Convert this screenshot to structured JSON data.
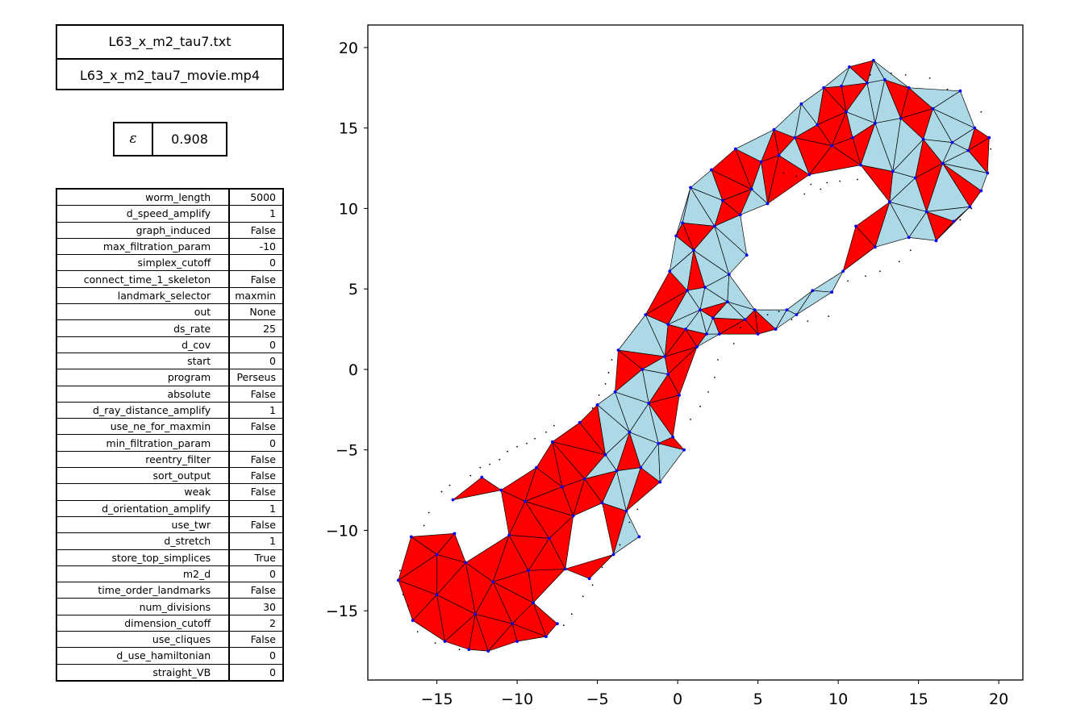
{
  "files": {
    "data_file": "L63_x_m2_tau7.txt",
    "movie_file": "L63_x_m2_tau7_movie.mp4"
  },
  "epsilon": {
    "symbol": "ε",
    "value": "0.908"
  },
  "params": [
    {
      "key": "worm_length",
      "value": "5000"
    },
    {
      "key": "d_speed_amplify",
      "value": "1"
    },
    {
      "key": "graph_induced",
      "value": "False"
    },
    {
      "key": "max_filtration_param",
      "value": "-10"
    },
    {
      "key": "simplex_cutoff",
      "value": "0"
    },
    {
      "key": "connect_time_1_skeleton",
      "value": "False"
    },
    {
      "key": "landmark_selector",
      "value": "maxmin"
    },
    {
      "key": "out",
      "value": "None"
    },
    {
      "key": "ds_rate",
      "value": "25"
    },
    {
      "key": "d_cov",
      "value": "0"
    },
    {
      "key": "start",
      "value": "0"
    },
    {
      "key": "program",
      "value": "Perseus"
    },
    {
      "key": "absolute",
      "value": "False"
    },
    {
      "key": "d_ray_distance_amplify",
      "value": "1"
    },
    {
      "key": "use_ne_for_maxmin",
      "value": "False"
    },
    {
      "key": "min_filtration_param",
      "value": "0"
    },
    {
      "key": "reentry_filter",
      "value": "False"
    },
    {
      "key": "sort_output",
      "value": "False"
    },
    {
      "key": "weak",
      "value": "False"
    },
    {
      "key": "d_orientation_amplify",
      "value": "1"
    },
    {
      "key": "use_twr",
      "value": "False"
    },
    {
      "key": "d_stretch",
      "value": "1"
    },
    {
      "key": "store_top_simplices",
      "value": "True"
    },
    {
      "key": "m2_d",
      "value": "0"
    },
    {
      "key": "time_order_landmarks",
      "value": "False"
    },
    {
      "key": "num_divisions",
      "value": "30"
    },
    {
      "key": "dimension_cutoff",
      "value": "2"
    },
    {
      "key": "use_cliques",
      "value": "False"
    },
    {
      "key": "d_use_hamiltonian",
      "value": "0"
    },
    {
      "key": "straight_VB",
      "value": "0"
    }
  ],
  "colors": {
    "triangle_fill": "#add8e6",
    "tetra_fill": "#ff0000",
    "landmark": "#0000ff",
    "witness": "#000000"
  },
  "chart_data": {
    "type": "scatter",
    "xlim": [
      -19.3,
      21.5
    ],
    "ylim": [
      -19.3,
      21.4
    ],
    "xticks": [
      -15,
      -10,
      -5,
      0,
      5,
      10,
      15,
      20
    ],
    "yticks": [
      -15,
      -10,
      -5,
      0,
      5,
      10,
      15,
      20
    ],
    "xtick_labels": [
      "−15",
      "−10",
      "−5",
      "0",
      "5",
      "10",
      "15",
      "20"
    ],
    "ytick_labels": [
      "−15",
      "−10",
      "−5",
      "0",
      "5",
      "10",
      "15",
      "20"
    ],
    "grid": false,
    "landmarks": [
      [
        -17.4,
        -13.1
      ],
      [
        -16.6,
        -10.4
      ],
      [
        -16.5,
        -15.6
      ],
      [
        -15.0,
        -14.0
      ],
      [
        -15.0,
        -11.5
      ],
      [
        -14.5,
        -16.9
      ],
      [
        -14.0,
        -8.1
      ],
      [
        -13.9,
        -10.2
      ],
      [
        -13.2,
        -12.0
      ],
      [
        -13.0,
        -17.4
      ],
      [
        -12.6,
        -15.2
      ],
      [
        -12.2,
        -6.7
      ],
      [
        -11.8,
        -17.5
      ],
      [
        -11.5,
        -13.2
      ],
      [
        -11.0,
        -7.5
      ],
      [
        -10.5,
        -10.3
      ],
      [
        -10.3,
        -15.8
      ],
      [
        -10.0,
        -16.9
      ],
      [
        -9.5,
        -8.2
      ],
      [
        -9.3,
        -12.5
      ],
      [
        -9.0,
        -14.5
      ],
      [
        -8.8,
        -6.1
      ],
      [
        -8.2,
        -16.6
      ],
      [
        -8.0,
        -10.5
      ],
      [
        -7.8,
        -4.5
      ],
      [
        -7.5,
        -15.8
      ],
      [
        -7.2,
        -7.3
      ],
      [
        -7.0,
        -12.4
      ],
      [
        -6.5,
        -9.1
      ],
      [
        -6.1,
        -3.3
      ],
      [
        -5.8,
        -6.8
      ],
      [
        -5.5,
        -13.0
      ],
      [
        -5.0,
        -2.2
      ],
      [
        -4.7,
        -8.3
      ],
      [
        -4.5,
        -5.3
      ],
      [
        -4.0,
        -11.5
      ],
      [
        -3.9,
        -1.4
      ],
      [
        -3.8,
        -6.3
      ],
      [
        -3.7,
        1.2
      ],
      [
        -3.2,
        -8.8
      ],
      [
        -3.0,
        -3.9
      ],
      [
        -2.4,
        -10.4
      ],
      [
        -2.3,
        -6.1
      ],
      [
        -2.2,
        0.0
      ],
      [
        -2.0,
        3.4
      ],
      [
        -1.8,
        -2.1
      ],
      [
        -1.2,
        -4.6
      ],
      [
        -1.1,
        -7.0
      ],
      [
        -0.8,
        0.8
      ],
      [
        -0.6,
        -0.3
      ],
      [
        -0.6,
        2.8
      ],
      [
        -0.5,
        6.1
      ],
      [
        -0.3,
        -4.2
      ],
      [
        -0.1,
        8.3
      ],
      [
        0.1,
        -1.6
      ],
      [
        0.3,
        9.1
      ],
      [
        0.4,
        -5.0
      ],
      [
        0.5,
        2.5
      ],
      [
        0.6,
        4.9
      ],
      [
        0.8,
        11.3
      ],
      [
        1.0,
        7.4
      ],
      [
        1.2,
        1.4
      ],
      [
        1.4,
        3.7
      ],
      [
        1.7,
        5.1
      ],
      [
        2.1,
        12.4
      ],
      [
        2.3,
        8.9
      ],
      [
        2.6,
        2.2
      ],
      [
        2.8,
        10.5
      ],
      [
        3.2,
        5.9
      ],
      [
        3.6,
        13.7
      ],
      [
        3.9,
        9.6
      ],
      [
        4.3,
        7.1
      ],
      [
        4.6,
        11.2
      ],
      [
        4.8,
        3.7
      ],
      [
        5.2,
        12.9
      ],
      [
        5.6,
        10.3
      ],
      [
        6.0,
        14.9
      ],
      [
        6.3,
        13.3
      ],
      [
        6.8,
        3.7
      ],
      [
        7.3,
        14.4
      ],
      [
        7.7,
        16.5
      ],
      [
        8.2,
        12.1
      ],
      [
        8.7,
        15.2
      ],
      [
        9.1,
        17.5
      ],
      [
        9.6,
        13.9
      ],
      [
        10.2,
        17.6
      ],
      [
        10.5,
        16.0
      ],
      [
        10.9,
        14.4
      ],
      [
        11.4,
        12.7
      ],
      [
        11.8,
        17.8
      ],
      [
        12.3,
        15.3
      ],
      [
        12.9,
        18.0
      ],
      [
        13.4,
        12.3
      ],
      [
        13.9,
        15.6
      ],
      [
        14.4,
        17.5
      ],
      [
        14.8,
        11.9
      ],
      [
        15.3,
        14.3
      ],
      [
        15.9,
        16.2
      ],
      [
        16.5,
        12.8
      ],
      [
        17.1,
        14.1
      ],
      [
        17.6,
        17.3
      ],
      [
        18.1,
        13.6
      ],
      [
        18.5,
        15.0
      ],
      [
        18.9,
        11.1
      ],
      [
        19.4,
        14.4
      ],
      [
        19.3,
        12.2
      ],
      [
        18.2,
        10.1
      ],
      [
        17.2,
        9.2
      ],
      [
        16.1,
        8.0
      ],
      [
        15.5,
        9.8
      ],
      [
        14.4,
        8.2
      ],
      [
        13.2,
        10.4
      ],
      [
        12.3,
        7.6
      ],
      [
        11.1,
        8.9
      ],
      [
        10.3,
        6.1
      ],
      [
        9.6,
        4.8
      ],
      [
        8.4,
        4.9
      ],
      [
        7.4,
        3.4
      ],
      [
        6.1,
        2.5
      ],
      [
        5.0,
        2.2
      ],
      [
        4.2,
        3.1
      ],
      [
        3.1,
        4.2
      ],
      [
        2.2,
        3.2
      ],
      [
        1.8,
        2.2
      ],
      [
        10.7,
        18.8
      ],
      [
        12.2,
        19.2
      ]
    ],
    "witness_points": [
      [
        -17.3,
        -12.5
      ],
      [
        -17.1,
        -14.0
      ],
      [
        -16.8,
        -14.7
      ],
      [
        -16.2,
        -16.3
      ],
      [
        -15.8,
        -9.7
      ],
      [
        -15.5,
        -8.9
      ],
      [
        -15.1,
        -17.0
      ],
      [
        -14.7,
        -7.6
      ],
      [
        -14.2,
        -7.2
      ],
      [
        -13.6,
        -17.4
      ],
      [
        -12.9,
        -6.6
      ],
      [
        -12.3,
        -6.1
      ],
      [
        -11.7,
        -5.9
      ],
      [
        -11.1,
        -5.6
      ],
      [
        -10.6,
        -5.1
      ],
      [
        -10.0,
        -4.8
      ],
      [
        -9.4,
        -4.6
      ],
      [
        -8.9,
        -4.3
      ],
      [
        -8.2,
        -3.9
      ],
      [
        -7.7,
        -3.5
      ],
      [
        -7.1,
        -15.9
      ],
      [
        -6.6,
        -15.2
      ],
      [
        -5.9,
        -14.1
      ],
      [
        -5.3,
        -13.4
      ],
      [
        -4.7,
        -12.3
      ],
      [
        -4.2,
        -11.6
      ],
      [
        -3.6,
        -10.9
      ],
      [
        -3.0,
        -9.5
      ],
      [
        -2.5,
        -8.7
      ],
      [
        -5.3,
        -2.4
      ],
      [
        -4.9,
        -1.6
      ],
      [
        -4.5,
        -0.9
      ],
      [
        -4.3,
        -0.2
      ],
      [
        -4.1,
        0.6
      ],
      [
        0.8,
        -3.1
      ],
      [
        1.4,
        -2.3
      ],
      [
        1.9,
        -1.4
      ],
      [
        2.3,
        -0.5
      ],
      [
        2.5,
        0.6
      ],
      [
        3.9,
        2.6
      ],
      [
        4.9,
        3.3
      ],
      [
        5.6,
        3.4
      ],
      [
        6.3,
        3.6
      ],
      [
        7.1,
        3.1
      ],
      [
        8.1,
        3.0
      ],
      [
        9.4,
        3.3
      ],
      [
        10.6,
        5.5
      ],
      [
        11.7,
        5.8
      ],
      [
        12.6,
        6.1
      ],
      [
        13.8,
        6.7
      ],
      [
        14.5,
        7.4
      ],
      [
        17.6,
        9.3
      ],
      [
        18.3,
        10.0
      ],
      [
        6.6,
        12.2
      ],
      [
        7.4,
        12.0
      ],
      [
        8.3,
        11.5
      ],
      [
        8.9,
        11.2
      ],
      [
        9.3,
        11.6
      ],
      [
        10.1,
        11.7
      ],
      [
        11.2,
        11.8
      ],
      [
        12.0,
        18.3
      ],
      [
        13.3,
        18.4
      ],
      [
        14.2,
        18.3
      ],
      [
        15.7,
        18.1
      ],
      [
        16.8,
        17.4
      ],
      [
        18.9,
        16.0
      ],
      [
        19.5,
        13.7
      ],
      [
        7.9,
        10.9
      ],
      [
        3.5,
        1.6
      ]
    ]
  }
}
